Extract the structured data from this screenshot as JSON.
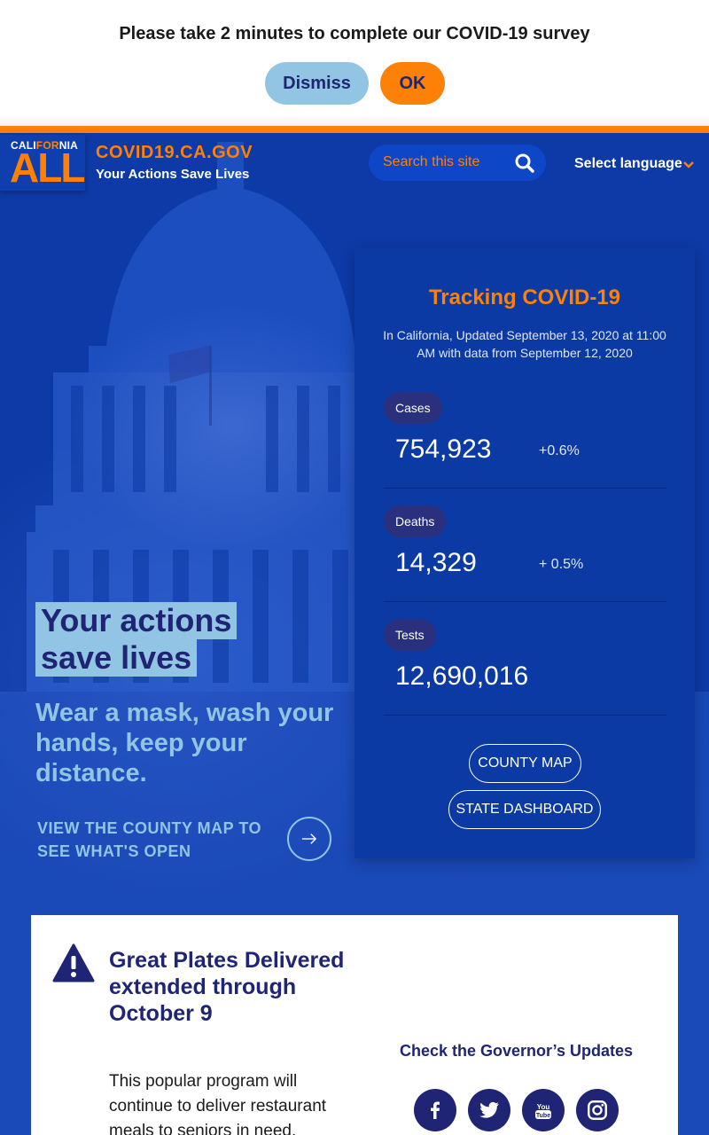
{
  "survey": {
    "message": "Please take 2 minutes to complete our COVID-19 survey",
    "dismiss_label": "Dismiss",
    "ok_label": "OK"
  },
  "header": {
    "logo_top_left": "CALI",
    "logo_top_for": "FOR",
    "logo_top_right": "NIA",
    "logo_all": "ALL",
    "site_title": "COVID19.CA.GOV",
    "tagline": "Your Actions Save Lives",
    "search_placeholder": "Search this site",
    "language_label": "Select language"
  },
  "hero": {
    "title_line1": "Your actions",
    "title_line2": "save lives",
    "subtitle": "Wear a mask, wash your hands, keep your distance.",
    "county_link": "VIEW THE COUNTY MAP TO SEE WHAT'S OPEN"
  },
  "tracking": {
    "title": "Tracking COVID-19",
    "subtitle": "In California, Updated September 13, 2020 at 11:00 AM with data from September 12, 2020",
    "stats": [
      {
        "label": "Cases",
        "value": "754,923",
        "change": "+0.6%"
      },
      {
        "label": "Deaths",
        "value": "14,329",
        "change": "+ 0.5%"
      },
      {
        "label": "Tests",
        "value": "12,690,016",
        "change": ""
      }
    ],
    "county_map_label": "COUNTY MAP",
    "state_dashboard_label": "STATE DASHBOARD"
  },
  "alert": {
    "title": "Great Plates Delivered extended through October 9",
    "text": "This popular program will continue to deliver restaurant meals to seniors in need."
  },
  "governor": {
    "label": "Check the Governor’s Updates",
    "social_icons": [
      "facebook-icon",
      "twitter-icon",
      "youtube-icon",
      "instagram-icon"
    ]
  },
  "colors": {
    "navy": "#1f2574",
    "orange": "#fd8106",
    "light_blue": "#92c5e3",
    "hero_blue": "#0d3aa6"
  }
}
